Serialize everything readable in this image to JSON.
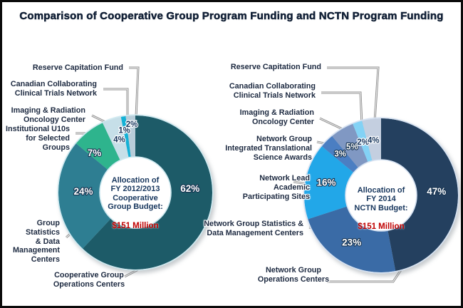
{
  "title": "Comparison of Cooperative Group Program Funding and NCTN Program Funding",
  "colors": {
    "amount_red": "#c00000",
    "callout_text": "#1c2940",
    "center_text": "#17365d",
    "leader_line": "#8f8f8f"
  },
  "chart_data": [
    {
      "type": "pie",
      "variant": "donut",
      "name": "Cooperative Group Program Funding",
      "center_label": {
        "text": "Allocation of\nFY 2012/2013\nCooperative\nGroup Budget:",
        "amount": "$151 Million"
      },
      "ring_color": "#cfe9f0",
      "slices": [
        {
          "label": "Cooperative Group Operations Centers",
          "value": 62,
          "color": "#1d5b68",
          "text_style": "light",
          "label_angle": 86,
          "label_r": 77
        },
        {
          "label": "Group Statistics & Data Management Centers",
          "value": 24,
          "color": "#2e7e92",
          "text_style": "light",
          "label_angle": 271,
          "label_r": 73
        },
        {
          "label": "Institutional U10s for Selected Groups",
          "value": 7,
          "color": "#2eb48d",
          "text_style": "light",
          "label_angle": 314,
          "label_r": 80
        },
        {
          "label": "Imaging & Radiation Oncology Center",
          "value": 4,
          "color": "#c6dfe8",
          "text_style": "dark",
          "label_angle": 343,
          "label_r": 77
        },
        {
          "label": "Canadian Collaborating Clinical Trials Network",
          "value": 1,
          "color": "#14b1d6",
          "text_style": "dark",
          "label_angle": 350,
          "label_r": 88
        },
        {
          "label": "Reserve Capitation Fund",
          "value": 2,
          "color": "#b8cdd9",
          "text_style": "dark",
          "label_angle": 357,
          "label_r": 95
        }
      ]
    },
    {
      "type": "pie",
      "variant": "donut",
      "name": "NCTN Program Funding",
      "center_label": {
        "text": "Allocation of\nFY 2014\nNCTN Budget:",
        "amount": "$151 Million"
      },
      "ring_color": "#d6e2f2",
      "slices": [
        {
          "label": "Network Group Operations Centers",
          "value": 47,
          "color": "#24405f",
          "text_style": "light",
          "label_angle": 86,
          "label_r": 78
        },
        {
          "label": "Network Group Statistics & Data Management Centers",
          "value": 23,
          "color": "#3a6ba6",
          "text_style": "light",
          "label_angle": 212,
          "label_r": 78
        },
        {
          "label": "Network Lead Academic Participating Sites",
          "value": 16,
          "color": "#22a7e8",
          "text_style": "light",
          "label_angle": 283,
          "label_r": 79
        },
        {
          "label": "Network Group Integrated Translational Science Awards",
          "value": 3,
          "color": "#4b7ec2",
          "text_style": "light",
          "label_angle": 315,
          "label_r": 81
        },
        {
          "label": "Imaging & Radiation Oncology Center",
          "value": 5,
          "color": "#8098c3",
          "text_style": "light",
          "label_angle": 329,
          "label_r": 79
        },
        {
          "label": "Canadian Collaborating Clinical Trials Network",
          "value": 2,
          "color": "#83d2f5",
          "text_style": "dark",
          "label_angle": 341,
          "label_r": 78
        },
        {
          "label": "Reserve Capitation Fund",
          "value": 4,
          "color": "#c4cfe0",
          "text_style": "dark",
          "label_angle": 352,
          "label_r": 77
        }
      ]
    }
  ],
  "callouts": {
    "left": {
      "reserve": "Reserve Capitation Fund",
      "canadian": "Canadian Collaborating\nClinical Trials Network",
      "imaging": "Imaging & Radiation\nOncology Center",
      "institutional": "Institutional U10s\nfor Selected\nGroups",
      "group_stats": "Group Statistics\n& Data\nManagement\nCenters",
      "operations": "Cooperative Group\nOperations Centers"
    },
    "right": {
      "reserve": "Reserve Capitation Fund",
      "canadian": "Canadian Collaborating\nClinical Trials Network",
      "imaging": "Imaging & Radiation\nOncology Center",
      "itsa": "Network Group\nIntegrated Translational\nScience Awards",
      "lead_sites": "Network Lead\nAcademic\nParticipating Sites",
      "stats": "Network Group Statistics &\nData Management Centers",
      "operations": "Network Group\nOperations Centers"
    }
  }
}
